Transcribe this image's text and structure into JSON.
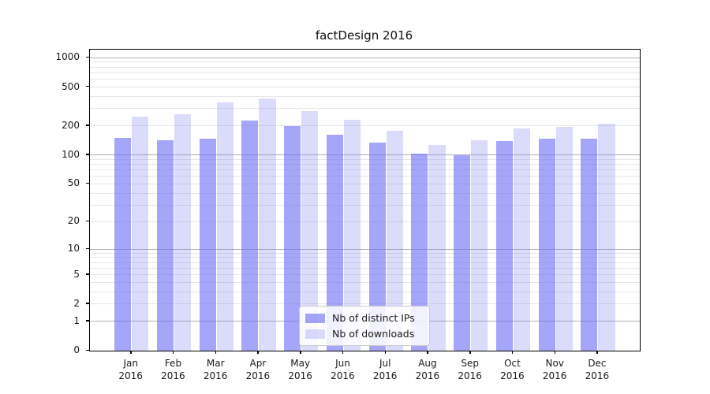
{
  "chart_data": {
    "type": "bar",
    "title": "factDesign 2016",
    "categories": [
      "Jan 2016",
      "Feb 2016",
      "Mar 2016",
      "Apr 2016",
      "May 2016",
      "Jun 2016",
      "Jul 2016",
      "Aug 2016",
      "Sep 2016",
      "Oct 2016",
      "Nov 2016",
      "Dec 2016"
    ],
    "series": [
      {
        "name": "Nb of distinct IPs",
        "values": [
          149,
          143,
          147,
          228,
          198,
          162,
          134,
          104,
          100,
          140,
          148,
          147
        ]
      },
      {
        "name": "Nb of downloads",
        "values": [
          250,
          261,
          345,
          379,
          282,
          229,
          178,
          126,
          141,
          188,
          194,
          211
        ]
      }
    ],
    "y_ticks": [
      0,
      1,
      2,
      5,
      10,
      20,
      50,
      100,
      200,
      500,
      1000
    ],
    "y_minor_gridlines": [
      2,
      3,
      4,
      5,
      6,
      7,
      8,
      9,
      20,
      30,
      40,
      50,
      60,
      70,
      80,
      90,
      200,
      300,
      400,
      500,
      600,
      700,
      800,
      900
    ],
    "y_major_gridlines": [
      1,
      10,
      100,
      1000
    ],
    "scale": "log10(1+y)",
    "ylim": [
      0,
      1212
    ],
    "grid": true,
    "legend_position": "lower center",
    "colors": {
      "bar_distinct_ips": "rgba(110,110,245,0.62)",
      "bar_downloads": "rgba(110,110,245,0.25)",
      "grid_major": "#b0b0b0",
      "grid_minor": "#e6e6e6",
      "axis": "#000000",
      "legend_border": "#cccccc",
      "legend_background": "rgba(255,255,255,0.85)",
      "text": "#1a1a1a"
    }
  }
}
